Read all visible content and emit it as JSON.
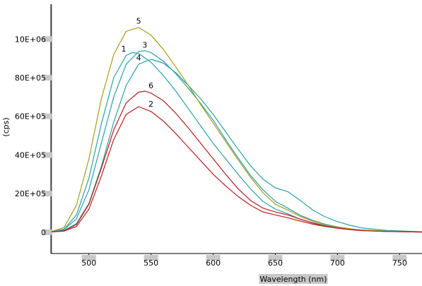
{
  "chart_data": {
    "type": "line",
    "xlabel": "Wavelength (nm)",
    "ylabel": "(cps)",
    "xlim": [
      470,
      768
    ],
    "ylim": [
      -110000,
      1180000
    ],
    "x_ticks": [
      500,
      550,
      600,
      650,
      700,
      750
    ],
    "y_ticks": [
      {
        "value": 0,
        "label": "0"
      },
      {
        "value": 200000,
        "label": "20E+05"
      },
      {
        "value": 400000,
        "label": "40E+05"
      },
      {
        "value": 600000,
        "label": "60E+05"
      },
      {
        "value": 800000,
        "label": "80E+05"
      },
      {
        "value": 1000000,
        "label": "10E+06"
      }
    ],
    "grid": false,
    "series": [
      {
        "name": "1",
        "color": "#2aa0a8",
        "x": [
          470,
          480,
          490,
          500,
          510,
          520,
          530,
          535,
          540,
          550,
          560,
          570,
          580,
          590,
          600,
          610,
          620,
          630,
          640,
          650,
          660,
          670,
          680,
          690,
          700,
          710,
          720,
          740,
          768
        ],
        "y": [
          3000,
          16000,
          90000,
          280000,
          560000,
          800000,
          915000,
          930000,
          925000,
          880000,
          810000,
          730000,
          640000,
          550000,
          460000,
          380000,
          300000,
          225000,
          160000,
          120000,
          95000,
          68000,
          50000,
          35000,
          24000,
          16000,
          10000,
          5000,
          2000
        ]
      },
      {
        "name": "2",
        "color": "#b51f1f",
        "x": [
          470,
          480,
          490,
          500,
          510,
          520,
          530,
          540,
          550,
          560,
          570,
          580,
          590,
          600,
          610,
          620,
          630,
          640,
          650,
          660,
          670,
          680,
          690,
          700,
          710,
          720,
          740,
          768
        ],
        "y": [
          2000,
          6000,
          30000,
          120000,
          290000,
          480000,
          610000,
          650000,
          625000,
          575000,
          510000,
          440000,
          370000,
          300000,
          240000,
          185000,
          140000,
          105000,
          90000,
          75000,
          58000,
          42000,
          30000,
          21000,
          14000,
          9000,
          4000,
          1000
        ]
      },
      {
        "name": "3",
        "color": "#2aa0a8",
        "x": [
          470,
          480,
          490,
          500,
          510,
          520,
          530,
          540,
          545,
          550,
          560,
          570,
          580,
          590,
          600,
          610,
          620,
          630,
          640,
          650,
          660,
          670,
          680,
          690,
          700,
          710,
          720,
          740,
          768
        ],
        "y": [
          3000,
          14000,
          70000,
          220000,
          460000,
          700000,
          870000,
          935000,
          940000,
          930000,
          885000,
          820000,
          745000,
          665000,
          580000,
          480000,
          385000,
          295000,
          220000,
          160000,
          125000,
          88000,
          62000,
          42000,
          28000,
          18000,
          12000,
          6000,
          2000
        ]
      },
      {
        "name": "4",
        "color": "#2aa0a8",
        "x": [
          470,
          480,
          490,
          500,
          510,
          520,
          530,
          540,
          550,
          560,
          570,
          580,
          590,
          600,
          610,
          620,
          630,
          640,
          650,
          660,
          670,
          680,
          690,
          700,
          710,
          720,
          740,
          768
        ],
        "y": [
          2500,
          9000,
          45000,
          150000,
          340000,
          570000,
          760000,
          870000,
          895000,
          875000,
          825000,
          760000,
          690000,
          610000,
          520000,
          430000,
          345000,
          275000,
          230000,
          210000,
          165000,
          115000,
          80000,
          55000,
          36000,
          22000,
          9000,
          3000
        ]
      },
      {
        "name": "5",
        "color": "#a89a18",
        "x": [
          470,
          480,
          490,
          500,
          510,
          520,
          530,
          540,
          550,
          560,
          570,
          580,
          590,
          600,
          610,
          620,
          630,
          640,
          650,
          660,
          670,
          680,
          690,
          700,
          710,
          720,
          740,
          768
        ],
        "y": [
          4000,
          25000,
          140000,
          380000,
          690000,
          920000,
          1040000,
          1060000,
          1020000,
          945000,
          855000,
          760000,
          660000,
          565000,
          470000,
          375000,
          285000,
          205000,
          145000,
          115000,
          82000,
          58000,
          40000,
          27000,
          18000,
          11000,
          5000,
          2000
        ]
      },
      {
        "name": "6",
        "color": "#b51f1f",
        "x": [
          470,
          480,
          490,
          500,
          510,
          520,
          530,
          540,
          545,
          550,
          560,
          570,
          580,
          590,
          600,
          610,
          620,
          630,
          640,
          650,
          660,
          670,
          680,
          690,
          700,
          710,
          720,
          740,
          768
        ],
        "y": [
          2000,
          7000,
          40000,
          145000,
          330000,
          530000,
          670000,
          725000,
          730000,
          720000,
          680000,
          615000,
          540000,
          460000,
          380000,
          300000,
          225000,
          165000,
          125000,
          105000,
          90000,
          68000,
          48000,
          32000,
          21000,
          14000,
          8000,
          4000,
          1000
        ]
      }
    ],
    "annotations": [
      {
        "text": "1",
        "x": 528,
        "y": 935000
      },
      {
        "text": "2",
        "x": 550,
        "y": 650000
      },
      {
        "text": "3",
        "x": 545,
        "y": 955000
      },
      {
        "text": "4",
        "x": 540,
        "y": 890000
      },
      {
        "text": "5",
        "x": 540,
        "y": 1080000
      },
      {
        "text": "6",
        "x": 550,
        "y": 745000
      }
    ]
  }
}
